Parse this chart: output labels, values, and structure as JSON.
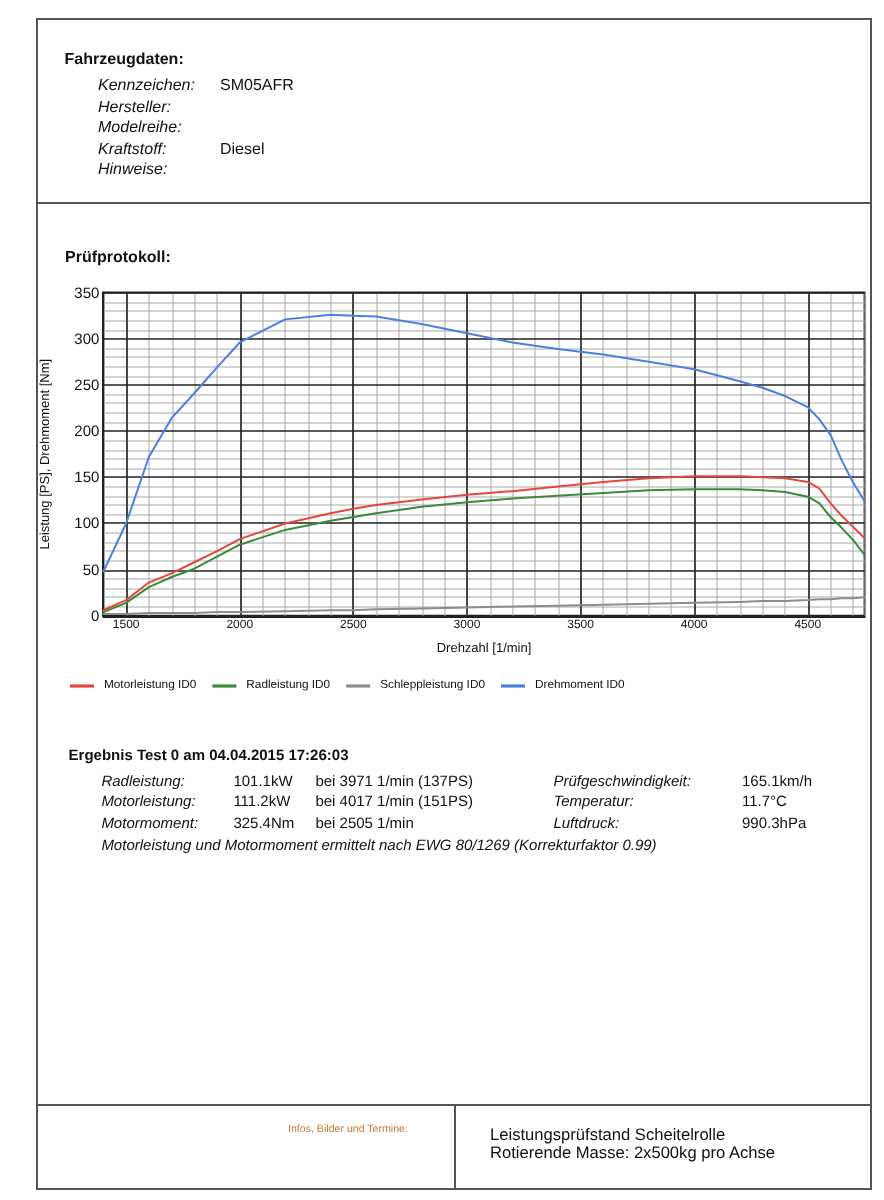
{
  "chart_data": {
    "type": "line",
    "title": "Prüfprotokoll:",
    "xlabel": "Drehzahl [1/min]",
    "ylabel": "Leistung [PS], Drehmoment [Nm]",
    "x": [
      1400,
      1500,
      1600,
      1700,
      1800,
      1900,
      2000,
      2200,
      2400,
      2500,
      2600,
      2800,
      3000,
      3200,
      3400,
      3600,
      3800,
      4000,
      4200,
      4300,
      4400,
      4500,
      4550,
      4600,
      4650,
      4700,
      4750
    ],
    "series": [
      {
        "name": "Motorleistung ID0",
        "color": "#e5473c",
        "values": [
          6,
          17,
          36,
          46,
          58,
          70,
          83,
          100,
          111,
          116,
          120,
          126,
          131,
          135,
          140,
          145,
          149,
          151,
          151,
          150,
          149,
          145,
          138,
          122,
          108,
          96,
          84
        ]
      },
      {
        "name": "Radleistung ID0",
        "color": "#3a8a3a",
        "values": [
          4,
          14,
          31,
          42,
          51,
          64,
          77,
          93,
          103,
          107,
          111,
          118,
          123,
          127,
          130,
          133,
          136,
          137,
          137,
          136,
          134,
          129,
          122,
          107,
          95,
          82,
          66
        ]
      },
      {
        "name": "Schleppleistung ID0",
        "color": "#8c8c8c",
        "values": [
          2,
          2,
          3,
          3,
          3,
          4,
          4,
          5,
          6,
          6,
          7,
          8,
          9,
          10,
          11,
          12,
          13,
          14,
          15,
          16,
          16,
          17,
          18,
          18,
          19,
          19,
          20
        ]
      },
      {
        "name": "Drehmoment ID0",
        "color": "#4a80e0",
        "values": [
          48,
          100,
          172,
          214,
          241,
          269,
          296,
          321,
          326,
          325,
          324,
          316,
          306,
          296,
          289,
          283,
          275,
          267,
          254,
          247,
          238,
          226,
          213,
          196,
          168,
          144,
          124
        ]
      }
    ],
    "xlim": [
      1400,
      4750
    ],
    "xticks": [
      1500,
      2000,
      2500,
      3000,
      3500,
      4000,
      4500
    ],
    "ylim": [
      0,
      350
    ],
    "yticks": [
      0,
      50,
      100,
      150,
      200,
      250,
      300,
      350
    ],
    "grid": true,
    "legend": "bottom left",
    "annotations": [
      "Fahrzeugdaten:",
      "Kennzeichen:",
      "SM05AFR",
      "Hersteller:",
      "Modelreihe:",
      "Kraftstoff:",
      "Diesel",
      "Hinweise:",
      "Ergebnis Test 0 am 04.04.2015 17:26:03",
      "Radleistung:",
      "101.1kW",
      "bei 3971 1/min (137PS)",
      "Prüfgeschwindigkeit:",
      "165.1km/h",
      "Motorleistung:",
      "111.2kW",
      "bei 4017 1/min (151PS)",
      "Temperatur:",
      "11.7°C",
      "Motormoment:",
      "325.4Nm",
      "bei 2505 1/min",
      "Luftdruck:",
      "990.3hPa",
      "Motorleistung und Motormoment ermittelt nach EWG 80/1269 (Korrekturfaktor 0.99)",
      "Infos, Bilder und Termine:",
      "Leistungsprüfstand Scheitelrolle",
      "Rotierende Masse: 2x500kg pro Achse"
    ]
  }
}
